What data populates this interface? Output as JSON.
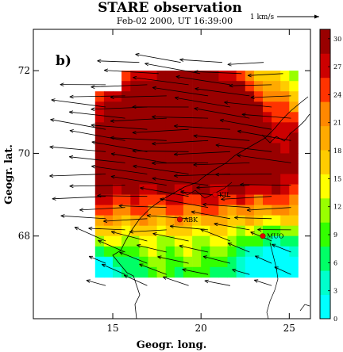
{
  "chart_data": {
    "type": "heatmap",
    "title": "STARE observation",
    "subtitle": "Feb-02 2000, UT 16:39:00",
    "panel_label": "b)",
    "xlabel": "Geogr. long.",
    "ylabel": "Geogr. lat.",
    "xlim": [
      10.5,
      26.2
    ],
    "ylim": [
      66.0,
      73.0
    ],
    "x_ticks": [
      15,
      20,
      25
    ],
    "y_ticks": [
      68,
      70,
      72
    ],
    "colorbar": {
      "range": [
        0,
        31
      ],
      "ticks": [
        0,
        3,
        6,
        9,
        12,
        15,
        18,
        21,
        24,
        27,
        30
      ],
      "colors": [
        "#00ffff",
        "#00ffcc",
        "#00ff66",
        "#33ff00",
        "#99ff00",
        "#ffff00",
        "#ffcc00",
        "#ffaa00",
        "#ff8800",
        "#ff3300",
        "#cc0000",
        "#990000"
      ]
    },
    "reference_vector": {
      "label": "1 km/s"
    },
    "grid_extent": {
      "lon": [
        14.0,
        25.5
      ],
      "lat": [
        67.0,
        72.0
      ]
    },
    "stations": [
      {
        "name": "KIL",
        "lon": 20.8,
        "lat": 69.0
      },
      {
        "name": "ABK",
        "lon": 18.8,
        "lat": 68.4
      },
      {
        "name": "MUO",
        "lon": 23.5,
        "lat": 68.0
      }
    ],
    "flow_direction": "westward"
  }
}
